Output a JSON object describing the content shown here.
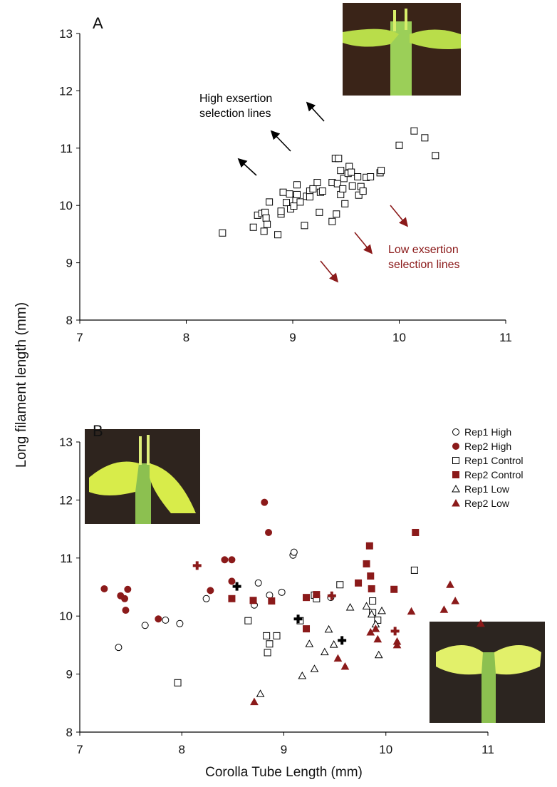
{
  "chart_data": [
    {
      "type": "scatter",
      "panel_label": "A",
      "ylabel": "Long filament length (mm)",
      "marker": "square",
      "color": "#000000",
      "filled": false,
      "x": [
        8.34,
        8.63,
        8.67,
        8.71,
        8.73,
        8.74,
        8.75,
        8.76,
        8.78,
        8.86,
        8.89,
        8.89,
        8.91,
        8.94,
        8.97,
        8.98,
        9.01,
        9.03,
        9.04,
        9.04,
        9.07,
        9.11,
        9.13,
        9.16,
        9.16,
        9.19,
        9.23,
        9.25,
        9.26,
        9.28,
        9.37,
        9.37,
        9.41,
        9.4,
        9.43,
        9.42,
        9.45,
        9.45,
        9.47,
        9.48,
        9.49,
        9.52,
        9.53,
        9.55,
        9.56,
        9.61,
        9.62,
        9.64,
        9.66,
        9.69,
        9.73,
        9.82,
        9.83,
        10.0,
        10.14,
        10.24,
        10.34
      ],
      "y": [
        9.52,
        9.62,
        9.83,
        9.86,
        9.55,
        9.88,
        9.78,
        9.67,
        10.06,
        9.49,
        9.85,
        9.9,
        10.23,
        10.05,
        10.2,
        9.94,
        9.99,
        10.1,
        10.36,
        10.19,
        10.06,
        9.65,
        10.16,
        10.25,
        10.15,
        10.29,
        10.4,
        9.88,
        10.23,
        10.25,
        10.4,
        9.72,
        9.85,
        10.82,
        10.82,
        10.38,
        10.61,
        10.19,
        10.29,
        10.47,
        10.03,
        10.56,
        10.68,
        10.58,
        10.34,
        10.5,
        10.18,
        10.33,
        10.25,
        10.49,
        10.5,
        10.57,
        10.61,
        11.05,
        11.3,
        11.18,
        10.87
      ],
      "annotations": [
        {
          "lines": [
            "High exsertion",
            "selection lines"
          ],
          "color": "#000000"
        },
        {
          "lines": [
            "Low exsertion",
            "selection lines"
          ],
          "color": "#8b1a1a"
        }
      ],
      "xlim": [
        7,
        11
      ],
      "ylim": [
        8,
        13
      ],
      "xticks": [
        7,
        8,
        9,
        10,
        11
      ],
      "yticks": [
        8,
        9,
        10,
        11,
        12,
        13
      ]
    },
    {
      "type": "scatter",
      "panel_label": "B",
      "xlabel": "Corolla Tube Length (mm)",
      "series": [
        {
          "name": "Rep1 High",
          "color": "#000000",
          "marker": "circle",
          "filled": false,
          "x": [
            7.38,
            7.64,
            7.84,
            7.98,
            8.24,
            8.71,
            8.75,
            8.86,
            8.98,
            9.09,
            9.1,
            9.46
          ],
          "y": [
            9.46,
            9.84,
            9.93,
            9.87,
            10.3,
            10.19,
            10.57,
            10.36,
            10.41,
            11.05,
            11.1,
            10.32
          ]
        },
        {
          "name": "Rep2 High",
          "color": "#8b1a1a",
          "marker": "circle",
          "filled": true,
          "x": [
            7.24,
            7.4,
            7.44,
            7.47,
            7.45,
            7.77,
            8.28,
            8.42,
            8.49,
            8.49,
            8.81,
            8.85
          ],
          "y": [
            10.47,
            10.35,
            10.3,
            10.46,
            10.1,
            9.95,
            10.44,
            10.97,
            10.97,
            10.6,
            11.96,
            11.44
          ]
        },
        {
          "name": "Rep1 Control",
          "color": "#000000",
          "marker": "square",
          "filled": false,
          "x": [
            7.96,
            8.65,
            8.83,
            8.84,
            8.86,
            8.93,
            9.16,
            9.3,
            9.32,
            9.55,
            9.87,
            9.87,
            9.92,
            10.28
          ],
          "y": [
            8.85,
            9.92,
            9.66,
            9.37,
            9.52,
            9.66,
            9.92,
            10.36,
            10.3,
            10.54,
            10.26,
            10.06,
            9.93,
            10.79
          ]
        },
        {
          "name": "Rep2 Control",
          "color": "#8b1a1a",
          "marker": "square",
          "filled": true,
          "x": [
            8.49,
            8.7,
            8.88,
            9.22,
            9.32,
            9.22,
            9.73,
            9.81,
            9.86,
            9.84,
            9.85,
            10.08,
            10.29
          ],
          "y": [
            10.3,
            10.27,
            10.26,
            10.32,
            10.37,
            9.78,
            10.57,
            10.9,
            10.47,
            11.21,
            10.69,
            10.46,
            11.44
          ]
        },
        {
          "name": "Rep1 Low",
          "color": "#000000",
          "marker": "triangle",
          "filled": false,
          "x": [
            8.77,
            9.18,
            9.25,
            9.3,
            9.4,
            9.44,
            9.49,
            9.65,
            9.81,
            9.86,
            9.9,
            9.96,
            9.93
          ],
          "y": [
            8.66,
            8.97,
            9.52,
            9.09,
            9.38,
            9.77,
            9.51,
            10.15,
            10.17,
            10.03,
            9.86,
            10.09,
            9.33
          ]
        },
        {
          "name": "Rep2 Low",
          "color": "#8b1a1a",
          "marker": "triangle",
          "filled": true,
          "x": [
            8.71,
            9.53,
            9.6,
            9.85,
            9.9,
            9.92,
            10.11,
            10.11,
            10.25,
            10.57,
            10.63,
            10.68,
            10.93
          ],
          "y": [
            8.52,
            9.27,
            9.13,
            9.72,
            9.78,
            9.6,
            9.56,
            9.5,
            10.08,
            10.11,
            10.54,
            10.26,
            9.87
          ]
        }
      ],
      "means": {
        "x": [
          8.54,
          9.14,
          9.57,
          8.15,
          9.47,
          10.09
        ],
        "y": [
          10.51,
          9.95,
          9.58,
          10.87,
          10.35,
          9.74
        ],
        "colors": [
          "#000000",
          "#000000",
          "#000000",
          "#8b1a1a",
          "#8b1a1a",
          "#8b1a1a"
        ]
      },
      "xlim": [
        7,
        11
      ],
      "ylim": [
        8,
        13
      ],
      "xticks": [
        7,
        8,
        9,
        10,
        11
      ],
      "yticks": [
        8,
        9,
        10,
        11,
        12,
        13
      ]
    }
  ]
}
